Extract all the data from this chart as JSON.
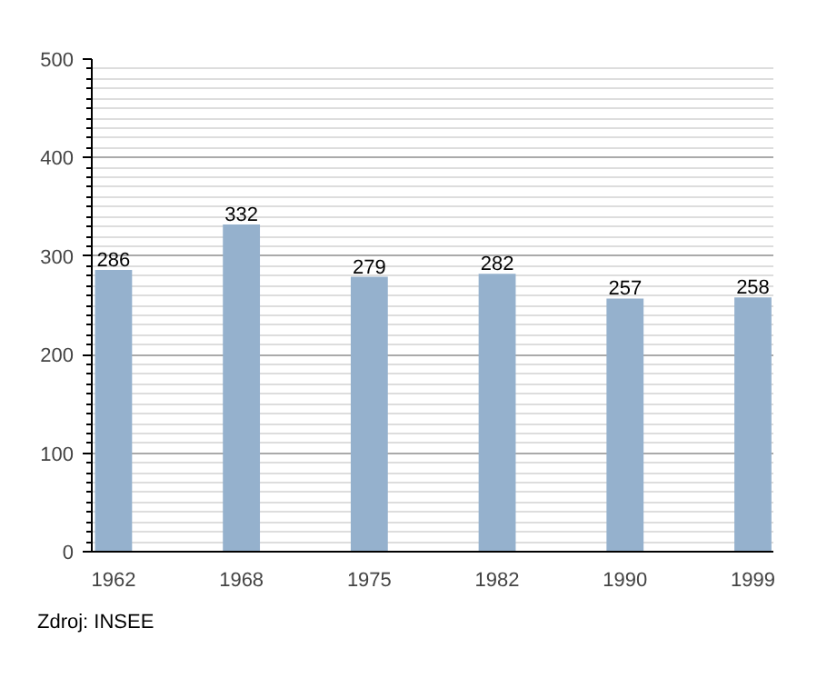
{
  "chart_data": {
    "type": "bar",
    "categories": [
      "1962",
      "1968",
      "1975",
      "1982",
      "1990",
      "1999"
    ],
    "values": [
      286,
      332,
      279,
      282,
      257,
      258
    ],
    "color": "#95b1cd",
    "data_labels": true,
    "ylim": [
      0,
      500
    ],
    "yticks": [
      0,
      {
        "value": 10,
        "label": null
      },
      {
        "value": 20,
        "label": null
      },
      {
        "value": 30,
        "label": null
      },
      {
        "value": 40,
        "label": null
      },
      {
        "value": 50,
        "label": null
      },
      {
        "value": 60,
        "label": null
      },
      {
        "value": 70,
        "label": null
      },
      {
        "value": 80,
        "label": null
      },
      {
        "value": 90,
        "label": null
      },
      100,
      {
        "value": 110,
        "label": null
      },
      {
        "value": 120,
        "label": null
      },
      {
        "value": 130,
        "label": null
      },
      {
        "value": 140,
        "label": null
      },
      {
        "value": 150,
        "label": null
      },
      {
        "value": 160,
        "label": null
      },
      {
        "value": 170,
        "label": null
      },
      {
        "value": 180,
        "label": null
      },
      {
        "value": 190,
        "label": null
      },
      200,
      {
        "value": 210,
        "label": null
      },
      {
        "value": 220,
        "label": null
      },
      {
        "value": 230,
        "label": null
      },
      {
        "value": 240,
        "label": null
      },
      {
        "value": 250,
        "label": null
      },
      {
        "value": 260,
        "label": null
      },
      {
        "value": 270,
        "label": null
      },
      {
        "value": 280,
        "label": null
      },
      {
        "value": 290,
        "label": null
      },
      300,
      {
        "value": 310,
        "label": null
      },
      {
        "value": 320,
        "label": null
      },
      {
        "value": 330,
        "label": null
      },
      {
        "value": 340,
        "label": null
      },
      {
        "value": 350,
        "label": null
      },
      {
        "value": 360,
        "label": null
      },
      {
        "value": 370,
        "label": null
      },
      {
        "value": 380,
        "label": null
      },
      {
        "value": 390,
        "label": null
      },
      400,
      {
        "value": 410,
        "label": null
      },
      {
        "value": 420,
        "label": null
      },
      {
        "value": 430,
        "label": null
      },
      {
        "value": 440,
        "label": null
      },
      {
        "value": 450,
        "label": null
      },
      {
        "value": 460,
        "label": null
      },
      {
        "value": 470,
        "label": null
      },
      {
        "value": 480,
        "label": null
      },
      {
        "value": 490,
        "label": null
      },
      500
    ],
    "grid": "y",
    "annotations": [
      "Zdroj: INSEE"
    ]
  }
}
